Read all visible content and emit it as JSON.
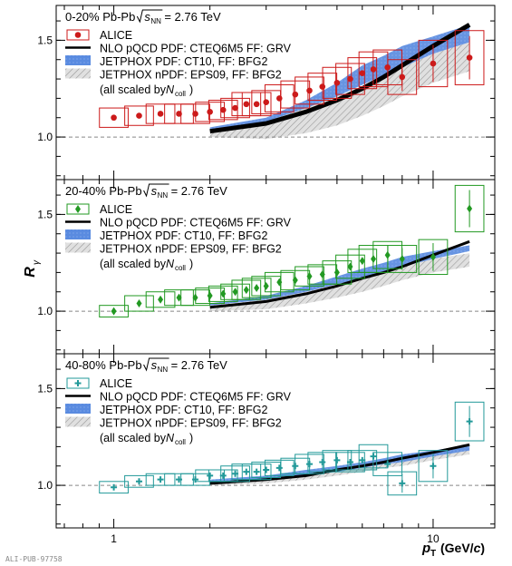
{
  "footer": "ALI-PUB-97758",
  "x_axis": {
    "label_main": "p",
    "label_sub": "T",
    "label_units_pre": "(GeV/",
    "label_units_c": "c",
    "label_units_post": ")",
    "tick_labels": [
      "1",
      "10"
    ],
    "scale": "log",
    "range": [
      0.66,
      15.6
    ]
  },
  "y_axis": {
    "label_main": "R",
    "label_sub": "γ",
    "tick_labels": [
      "1.0",
      "1.5"
    ],
    "range": [
      0.78,
      1.68
    ],
    "reference_line": 1.0
  },
  "legend": {
    "alice": "ALICE",
    "nlo": "NLO pQCD PDF: CTEQ6M5 FF: GRV",
    "jetphox": "JETPHOX PDF: CT10, FF: BFG2",
    "jetphox_npdf": "JETPHOX nPDF: EPS09, FF: BFG2",
    "scaled_pre": "(all scaled by ",
    "scaled_n": "N",
    "scaled_sub": "coll",
    "scaled_post": ")"
  },
  "colors": {
    "panel_0_20": "#cc1a1a",
    "panel_20_40": "#229922",
    "panel_40_80": "#229999",
    "nlo": "#000000",
    "jetphox": "#5a8be0",
    "jetphox_npdf": "#bdbdbd",
    "reference_line": "#888888"
  },
  "chart_data": [
    {
      "type": "scatter",
      "title_prefix": "0-20% Pb-Pb ",
      "title_energy": "= 2.76 TeV",
      "marker": "circle",
      "x": [
        1.0,
        1.2,
        1.4,
        1.6,
        1.8,
        2.0,
        2.2,
        2.4,
        2.6,
        2.8,
        3.0,
        3.3,
        3.7,
        4.1,
        4.5,
        5.0,
        5.5,
        6.0,
        6.5,
        7.2,
        8.0,
        10.0,
        13.0
      ],
      "y": [
        1.1,
        1.11,
        1.12,
        1.12,
        1.12,
        1.13,
        1.14,
        1.15,
        1.17,
        1.17,
        1.18,
        1.2,
        1.22,
        1.24,
        1.26,
        1.28,
        1.3,
        1.33,
        1.35,
        1.36,
        1.31,
        1.38,
        1.41
      ],
      "sys_half": [
        0.05,
        0.05,
        0.05,
        0.05,
        0.05,
        0.05,
        0.05,
        0.05,
        0.06,
        0.06,
        0.06,
        0.07,
        0.07,
        0.07,
        0.07,
        0.08,
        0.08,
        0.08,
        0.09,
        0.09,
        0.09,
        0.12,
        0.14
      ],
      "nlo": {
        "x": [
          2,
          3,
          4,
          5,
          6,
          7,
          8,
          10,
          13
        ],
        "y": [
          1.03,
          1.07,
          1.13,
          1.19,
          1.25,
          1.31,
          1.37,
          1.47,
          1.58
        ]
      },
      "jetphox": {
        "x": [
          2,
          3,
          4,
          5,
          6,
          7,
          8,
          10,
          13
        ],
        "lo": [
          1.04,
          1.08,
          1.15,
          1.21,
          1.27,
          1.32,
          1.36,
          1.43,
          1.49
        ],
        "hi": [
          1.05,
          1.1,
          1.19,
          1.28,
          1.37,
          1.42,
          1.47,
          1.52,
          1.58
        ]
      },
      "jetphox_npdf": {
        "x": [
          2,
          3,
          4,
          5,
          6,
          7,
          8,
          10,
          13
        ],
        "lo": [
          1.0,
          0.99,
          1.02,
          1.06,
          1.11,
          1.16,
          1.21,
          1.28,
          1.34
        ],
        "hi": [
          1.04,
          1.09,
          1.16,
          1.21,
          1.26,
          1.31,
          1.36,
          1.43,
          1.49
        ]
      }
    },
    {
      "type": "scatter",
      "title_prefix": "20-40% Pb-Pb ",
      "title_energy": "= 2.76 TeV",
      "marker": "diamond",
      "x": [
        1.0,
        1.2,
        1.4,
        1.6,
        1.8,
        2.0,
        2.2,
        2.4,
        2.6,
        2.8,
        3.0,
        3.3,
        3.7,
        4.1,
        4.5,
        5.0,
        5.5,
        6.0,
        6.5,
        7.2,
        8.0,
        10.0,
        13.0
      ],
      "y": [
        1.0,
        1.04,
        1.06,
        1.07,
        1.07,
        1.08,
        1.09,
        1.1,
        1.11,
        1.12,
        1.13,
        1.15,
        1.16,
        1.18,
        1.19,
        1.2,
        1.23,
        1.26,
        1.27,
        1.29,
        1.27,
        1.28,
        1.53
      ],
      "sys_half": [
        0.03,
        0.04,
        0.04,
        0.04,
        0.04,
        0.04,
        0.04,
        0.04,
        0.05,
        0.05,
        0.05,
        0.05,
        0.05,
        0.05,
        0.05,
        0.06,
        0.06,
        0.06,
        0.07,
        0.07,
        0.07,
        0.09,
        0.12
      ],
      "nlo": {
        "x": [
          2,
          3,
          4,
          5,
          6,
          7,
          8,
          10,
          13
        ],
        "y": [
          1.02,
          1.05,
          1.09,
          1.13,
          1.17,
          1.2,
          1.23,
          1.29,
          1.36
        ]
      },
      "jetphox": {
        "x": [
          2,
          3,
          4,
          5,
          6,
          7,
          8,
          10,
          13
        ],
        "lo": [
          1.03,
          1.06,
          1.1,
          1.14,
          1.17,
          1.2,
          1.23,
          1.27,
          1.31
        ],
        "hi": [
          1.04,
          1.08,
          1.13,
          1.18,
          1.22,
          1.25,
          1.28,
          1.31,
          1.34
        ]
      },
      "jetphox_npdf": {
        "x": [
          2,
          3,
          4,
          5,
          6,
          7,
          8,
          10,
          13
        ],
        "lo": [
          1.0,
          1.01,
          1.04,
          1.07,
          1.1,
          1.13,
          1.16,
          1.2,
          1.23
        ],
        "hi": [
          1.03,
          1.06,
          1.1,
          1.14,
          1.17,
          1.2,
          1.23,
          1.27,
          1.3
        ]
      }
    },
    {
      "type": "scatter",
      "title_prefix": "40-80% Pb-Pb ",
      "title_energy": "= 2.76 TeV",
      "marker": "cross",
      "x": [
        1.0,
        1.2,
        1.4,
        1.6,
        1.8,
        2.0,
        2.2,
        2.4,
        2.6,
        2.8,
        3.0,
        3.3,
        3.7,
        4.1,
        4.5,
        5.0,
        5.5,
        6.0,
        6.5,
        7.2,
        8.0,
        10.0,
        13.0
      ],
      "y": [
        0.99,
        1.02,
        1.03,
        1.03,
        1.03,
        1.05,
        1.05,
        1.06,
        1.07,
        1.07,
        1.08,
        1.09,
        1.1,
        1.11,
        1.12,
        1.13,
        1.12,
        1.13,
        1.15,
        1.11,
        1.01,
        1.1,
        1.33
      ],
      "sys_half": [
        0.03,
        0.03,
        0.03,
        0.03,
        0.03,
        0.03,
        0.03,
        0.04,
        0.04,
        0.04,
        0.04,
        0.04,
        0.04,
        0.05,
        0.05,
        0.05,
        0.05,
        0.05,
        0.06,
        0.06,
        0.06,
        0.08,
        0.1
      ],
      "nlo": {
        "x": [
          2,
          3,
          4,
          5,
          6,
          7,
          8,
          10,
          13
        ],
        "y": [
          1.01,
          1.03,
          1.05,
          1.08,
          1.1,
          1.12,
          1.14,
          1.17,
          1.21
        ]
      },
      "jetphox": {
        "x": [
          2,
          3,
          4,
          5,
          6,
          7,
          8,
          10,
          13
        ],
        "lo": [
          1.02,
          1.03,
          1.05,
          1.07,
          1.09,
          1.11,
          1.12,
          1.15,
          1.18
        ],
        "hi": [
          1.03,
          1.05,
          1.08,
          1.1,
          1.12,
          1.14,
          1.16,
          1.18,
          1.21
        ]
      },
      "jetphox_npdf": {
        "x": [
          2,
          3,
          4,
          5,
          6,
          7,
          8,
          10,
          13
        ],
        "lo": [
          1.0,
          1.01,
          1.03,
          1.05,
          1.07,
          1.09,
          1.1,
          1.13,
          1.16
        ],
        "hi": [
          1.02,
          1.04,
          1.06,
          1.08,
          1.1,
          1.12,
          1.14,
          1.16,
          1.19
        ]
      }
    }
  ]
}
